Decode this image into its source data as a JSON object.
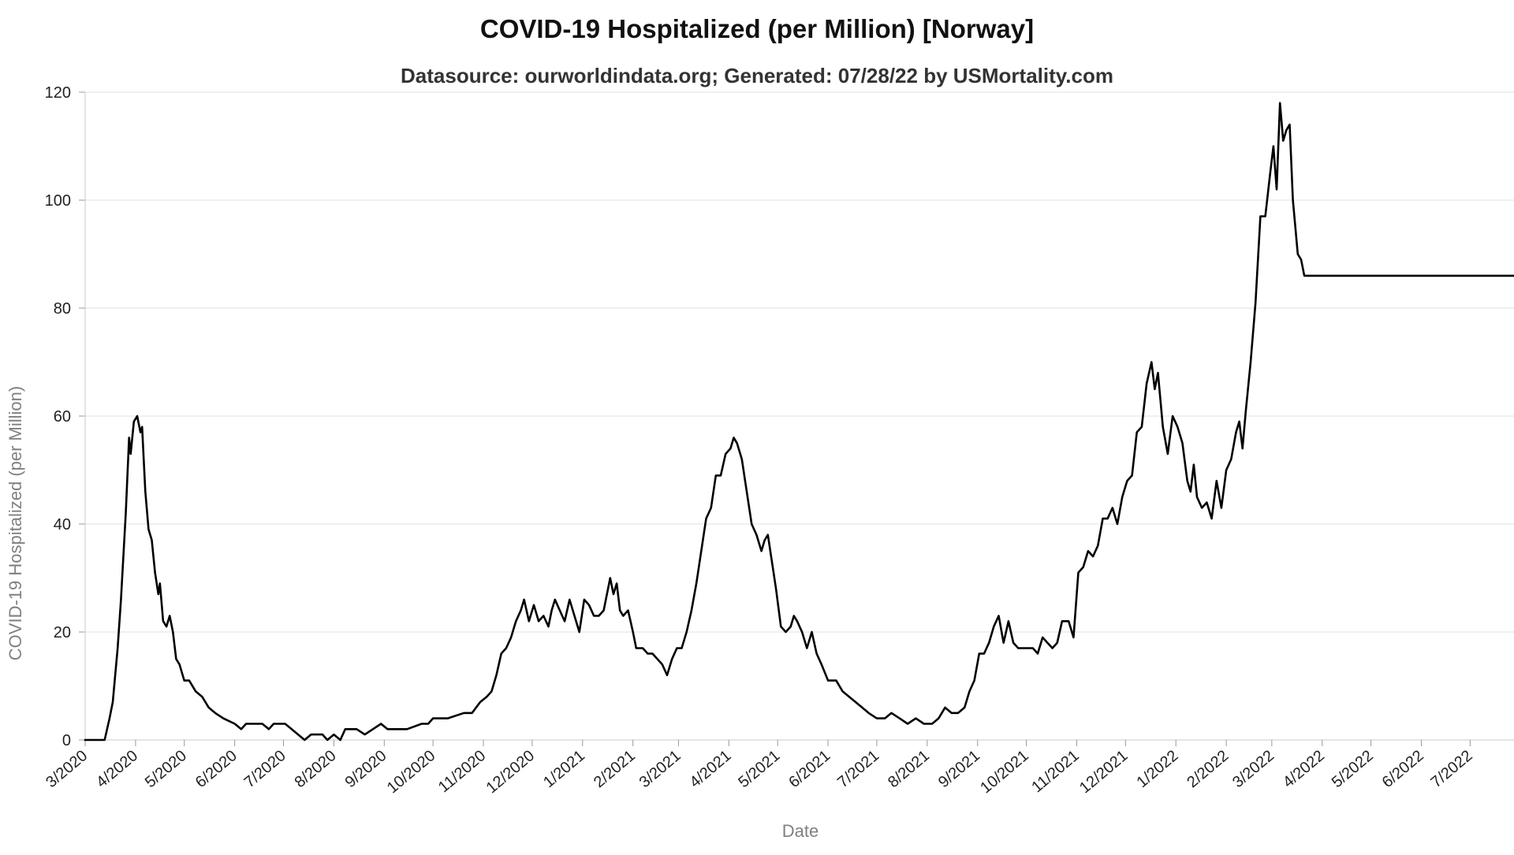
{
  "chart_data": {
    "type": "line",
    "title": "COVID-19 Hospitalized (per Million) [Norway]",
    "subtitle": "Datasource: ourworldindata.org; Generated: 07/28/22 by USMortality.com",
    "xlabel": "Date",
    "ylabel": "COVID-19 Hospitalized (per Million)",
    "ylim": [
      0,
      120
    ],
    "yticks": [
      0,
      20,
      40,
      60,
      80,
      100,
      120
    ],
    "xlim": [
      "2020-03-01",
      "2022-07-28"
    ],
    "xticks": [
      {
        "date": "2020-03-01",
        "label": "3/2020"
      },
      {
        "date": "2020-04-01",
        "label": "4/2020"
      },
      {
        "date": "2020-05-01",
        "label": "5/2020"
      },
      {
        "date": "2020-06-01",
        "label": "6/2020"
      },
      {
        "date": "2020-07-01",
        "label": "7/2020"
      },
      {
        "date": "2020-08-01",
        "label": "8/2020"
      },
      {
        "date": "2020-09-01",
        "label": "9/2020"
      },
      {
        "date": "2020-10-01",
        "label": "10/2020"
      },
      {
        "date": "2020-11-01",
        "label": "11/2020"
      },
      {
        "date": "2020-12-01",
        "label": "12/2020"
      },
      {
        "date": "2021-01-01",
        "label": "1/2021"
      },
      {
        "date": "2021-02-01",
        "label": "2/2021"
      },
      {
        "date": "2021-03-01",
        "label": "3/2021"
      },
      {
        "date": "2021-04-01",
        "label": "4/2021"
      },
      {
        "date": "2021-05-01",
        "label": "5/2021"
      },
      {
        "date": "2021-06-01",
        "label": "6/2021"
      },
      {
        "date": "2021-07-01",
        "label": "7/2021"
      },
      {
        "date": "2021-08-01",
        "label": "8/2021"
      },
      {
        "date": "2021-09-01",
        "label": "9/2021"
      },
      {
        "date": "2021-10-01",
        "label": "10/2021"
      },
      {
        "date": "2021-11-01",
        "label": "11/2021"
      },
      {
        "date": "2021-12-01",
        "label": "12/2021"
      },
      {
        "date": "2022-01-01",
        "label": "1/2022"
      },
      {
        "date": "2022-02-01",
        "label": "2/2022"
      },
      {
        "date": "2022-03-01",
        "label": "3/2022"
      },
      {
        "date": "2022-04-01",
        "label": "4/2022"
      },
      {
        "date": "2022-05-01",
        "label": "5/2022"
      },
      {
        "date": "2022-06-01",
        "label": "6/2022"
      },
      {
        "date": "2022-07-01",
        "label": "7/2022"
      }
    ],
    "grid": true,
    "line_color": "#000000",
    "series": [
      {
        "points": [
          [
            "2020-03-01",
            0
          ],
          [
            "2020-03-13",
            0
          ],
          [
            "2020-03-16",
            4
          ],
          [
            "2020-03-18",
            7
          ],
          [
            "2020-03-21",
            17
          ],
          [
            "2020-03-23",
            26
          ],
          [
            "2020-03-26",
            42
          ],
          [
            "2020-03-28",
            56
          ],
          [
            "2020-03-29",
            53
          ],
          [
            "2020-03-31",
            59
          ],
          [
            "2020-04-02",
            60
          ],
          [
            "2020-04-04",
            57
          ],
          [
            "2020-04-05",
            58
          ],
          [
            "2020-04-07",
            46
          ],
          [
            "2020-04-09",
            39
          ],
          [
            "2020-04-11",
            37
          ],
          [
            "2020-04-13",
            31
          ],
          [
            "2020-04-15",
            27
          ],
          [
            "2020-04-16",
            29
          ],
          [
            "2020-04-18",
            22
          ],
          [
            "2020-04-20",
            21
          ],
          [
            "2020-04-22",
            23
          ],
          [
            "2020-04-24",
            20
          ],
          [
            "2020-04-26",
            15
          ],
          [
            "2020-04-28",
            14
          ],
          [
            "2020-05-01",
            11
          ],
          [
            "2020-05-04",
            11
          ],
          [
            "2020-05-08",
            9
          ],
          [
            "2020-05-12",
            8
          ],
          [
            "2020-05-16",
            6
          ],
          [
            "2020-05-20",
            5
          ],
          [
            "2020-05-25",
            4
          ],
          [
            "2020-06-01",
            3
          ],
          [
            "2020-06-05",
            2
          ],
          [
            "2020-06-08",
            3
          ],
          [
            "2020-06-18",
            3
          ],
          [
            "2020-06-22",
            2
          ],
          [
            "2020-06-25",
            3
          ],
          [
            "2020-07-02",
            3
          ],
          [
            "2020-07-06",
            2
          ],
          [
            "2020-07-10",
            1
          ],
          [
            "2020-07-14",
            0
          ],
          [
            "2020-07-18",
            1
          ],
          [
            "2020-07-25",
            1
          ],
          [
            "2020-07-28",
            0
          ],
          [
            "2020-08-01",
            1
          ],
          [
            "2020-08-05",
            0
          ],
          [
            "2020-08-08",
            2
          ],
          [
            "2020-08-15",
            2
          ],
          [
            "2020-08-20",
            1
          ],
          [
            "2020-08-25",
            2
          ],
          [
            "2020-08-30",
            3
          ],
          [
            "2020-09-03",
            2
          ],
          [
            "2020-09-15",
            2
          ],
          [
            "2020-09-24",
            3
          ],
          [
            "2020-09-28",
            3
          ],
          [
            "2020-10-01",
            4
          ],
          [
            "2020-10-10",
            4
          ],
          [
            "2020-10-20",
            5
          ],
          [
            "2020-10-25",
            5
          ],
          [
            "2020-10-30",
            7
          ],
          [
            "2020-11-03",
            8
          ],
          [
            "2020-11-06",
            9
          ],
          [
            "2020-11-09",
            12
          ],
          [
            "2020-11-12",
            16
          ],
          [
            "2020-11-15",
            17
          ],
          [
            "2020-11-18",
            19
          ],
          [
            "2020-11-21",
            22
          ],
          [
            "2020-11-24",
            24
          ],
          [
            "2020-11-26",
            26
          ],
          [
            "2020-11-29",
            22
          ],
          [
            "2020-12-02",
            25
          ],
          [
            "2020-12-05",
            22
          ],
          [
            "2020-12-08",
            23
          ],
          [
            "2020-12-11",
            21
          ],
          [
            "2020-12-13",
            24
          ],
          [
            "2020-12-15",
            26
          ],
          [
            "2020-12-18",
            24
          ],
          [
            "2020-12-21",
            22
          ],
          [
            "2020-12-24",
            26
          ],
          [
            "2020-12-27",
            23
          ],
          [
            "2020-12-30",
            20
          ],
          [
            "2021-01-02",
            26
          ],
          [
            "2021-01-05",
            25
          ],
          [
            "2021-01-08",
            23
          ],
          [
            "2021-01-11",
            23
          ],
          [
            "2021-01-14",
            24
          ],
          [
            "2021-01-16",
            27
          ],
          [
            "2021-01-18",
            30
          ],
          [
            "2021-01-20",
            27
          ],
          [
            "2021-01-22",
            29
          ],
          [
            "2021-01-24",
            24
          ],
          [
            "2021-01-26",
            23
          ],
          [
            "2021-01-29",
            24
          ],
          [
            "2021-02-01",
            20
          ],
          [
            "2021-02-03",
            17
          ],
          [
            "2021-02-07",
            17
          ],
          [
            "2021-02-10",
            16
          ],
          [
            "2021-02-13",
            16
          ],
          [
            "2021-02-16",
            15
          ],
          [
            "2021-02-19",
            14
          ],
          [
            "2021-02-22",
            12
          ],
          [
            "2021-02-25",
            15
          ],
          [
            "2021-02-28",
            17
          ],
          [
            "2021-03-03",
            17
          ],
          [
            "2021-03-06",
            20
          ],
          [
            "2021-03-09",
            24
          ],
          [
            "2021-03-12",
            29
          ],
          [
            "2021-03-15",
            35
          ],
          [
            "2021-03-18",
            41
          ],
          [
            "2021-03-21",
            43
          ],
          [
            "2021-03-24",
            49
          ],
          [
            "2021-03-27",
            49
          ],
          [
            "2021-03-30",
            53
          ],
          [
            "2021-04-02",
            54
          ],
          [
            "2021-04-04",
            56
          ],
          [
            "2021-04-06",
            55
          ],
          [
            "2021-04-09",
            52
          ],
          [
            "2021-04-12",
            46
          ],
          [
            "2021-04-15",
            40
          ],
          [
            "2021-04-18",
            38
          ],
          [
            "2021-04-21",
            35
          ],
          [
            "2021-04-23",
            37
          ],
          [
            "2021-04-25",
            38
          ],
          [
            "2021-04-27",
            34
          ],
          [
            "2021-04-30",
            28
          ],
          [
            "2021-05-03",
            21
          ],
          [
            "2021-05-06",
            20
          ],
          [
            "2021-05-09",
            21
          ],
          [
            "2021-05-11",
            23
          ],
          [
            "2021-05-13",
            22
          ],
          [
            "2021-05-16",
            20
          ],
          [
            "2021-05-19",
            17
          ],
          [
            "2021-05-22",
            20
          ],
          [
            "2021-05-25",
            16
          ],
          [
            "2021-05-28",
            14
          ],
          [
            "2021-06-01",
            11
          ],
          [
            "2021-06-06",
            11
          ],
          [
            "2021-06-10",
            9
          ],
          [
            "2021-06-14",
            8
          ],
          [
            "2021-06-18",
            7
          ],
          [
            "2021-06-22",
            6
          ],
          [
            "2021-06-26",
            5
          ],
          [
            "2021-07-01",
            4
          ],
          [
            "2021-07-06",
            4
          ],
          [
            "2021-07-10",
            5
          ],
          [
            "2021-07-15",
            4
          ],
          [
            "2021-07-20",
            3
          ],
          [
            "2021-07-25",
            4
          ],
          [
            "2021-07-30",
            3
          ],
          [
            "2021-08-04",
            3
          ],
          [
            "2021-08-08",
            4
          ],
          [
            "2021-08-12",
            6
          ],
          [
            "2021-08-16",
            5
          ],
          [
            "2021-08-20",
            5
          ],
          [
            "2021-08-24",
            6
          ],
          [
            "2021-08-27",
            9
          ],
          [
            "2021-08-30",
            11
          ],
          [
            "2021-09-02",
            16
          ],
          [
            "2021-09-05",
            16
          ],
          [
            "2021-09-08",
            18
          ],
          [
            "2021-09-11",
            21
          ],
          [
            "2021-09-14",
            23
          ],
          [
            "2021-09-17",
            18
          ],
          [
            "2021-09-20",
            22
          ],
          [
            "2021-09-23",
            18
          ],
          [
            "2021-09-26",
            17
          ],
          [
            "2021-10-01",
            17
          ],
          [
            "2021-10-05",
            17
          ],
          [
            "2021-10-08",
            16
          ],
          [
            "2021-10-11",
            19
          ],
          [
            "2021-10-14",
            18
          ],
          [
            "2021-10-17",
            17
          ],
          [
            "2021-10-20",
            18
          ],
          [
            "2021-10-23",
            22
          ],
          [
            "2021-10-27",
            22
          ],
          [
            "2021-10-30",
            19
          ],
          [
            "2021-11-02",
            31
          ],
          [
            "2021-11-05",
            32
          ],
          [
            "2021-11-08",
            35
          ],
          [
            "2021-11-11",
            34
          ],
          [
            "2021-11-14",
            36
          ],
          [
            "2021-11-17",
            41
          ],
          [
            "2021-11-20",
            41
          ],
          [
            "2021-11-23",
            43
          ],
          [
            "2021-11-26",
            40
          ],
          [
            "2021-11-29",
            45
          ],
          [
            "2021-12-02",
            48
          ],
          [
            "2021-12-05",
            49
          ],
          [
            "2021-12-08",
            57
          ],
          [
            "2021-12-11",
            58
          ],
          [
            "2021-12-14",
            66
          ],
          [
            "2021-12-17",
            70
          ],
          [
            "2021-12-19",
            65
          ],
          [
            "2021-12-21",
            68
          ],
          [
            "2021-12-24",
            58
          ],
          [
            "2021-12-27",
            53
          ],
          [
            "2021-12-30",
            60
          ],
          [
            "2022-01-02",
            58
          ],
          [
            "2022-01-05",
            55
          ],
          [
            "2022-01-08",
            48
          ],
          [
            "2022-01-10",
            46
          ],
          [
            "2022-01-12",
            51
          ],
          [
            "2022-01-14",
            45
          ],
          [
            "2022-01-17",
            43
          ],
          [
            "2022-01-20",
            44
          ],
          [
            "2022-01-23",
            41
          ],
          [
            "2022-01-26",
            48
          ],
          [
            "2022-01-29",
            43
          ],
          [
            "2022-02-01",
            50
          ],
          [
            "2022-02-04",
            52
          ],
          [
            "2022-02-07",
            57
          ],
          [
            "2022-02-09",
            59
          ],
          [
            "2022-02-11",
            54
          ],
          [
            "2022-02-13",
            61
          ],
          [
            "2022-02-16",
            70
          ],
          [
            "2022-02-19",
            81
          ],
          [
            "2022-02-22",
            97
          ],
          [
            "2022-02-25",
            97
          ],
          [
            "2022-02-28",
            105
          ],
          [
            "2022-03-02",
            110
          ],
          [
            "2022-03-04",
            102
          ],
          [
            "2022-03-06",
            118
          ],
          [
            "2022-03-08",
            111
          ],
          [
            "2022-03-10",
            113
          ],
          [
            "2022-03-12",
            114
          ],
          [
            "2022-03-14",
            100
          ],
          [
            "2022-03-17",
            90
          ],
          [
            "2022-03-19",
            89
          ],
          [
            "2022-03-21",
            86
          ],
          [
            "2022-07-28",
            86
          ]
        ]
      }
    ]
  }
}
